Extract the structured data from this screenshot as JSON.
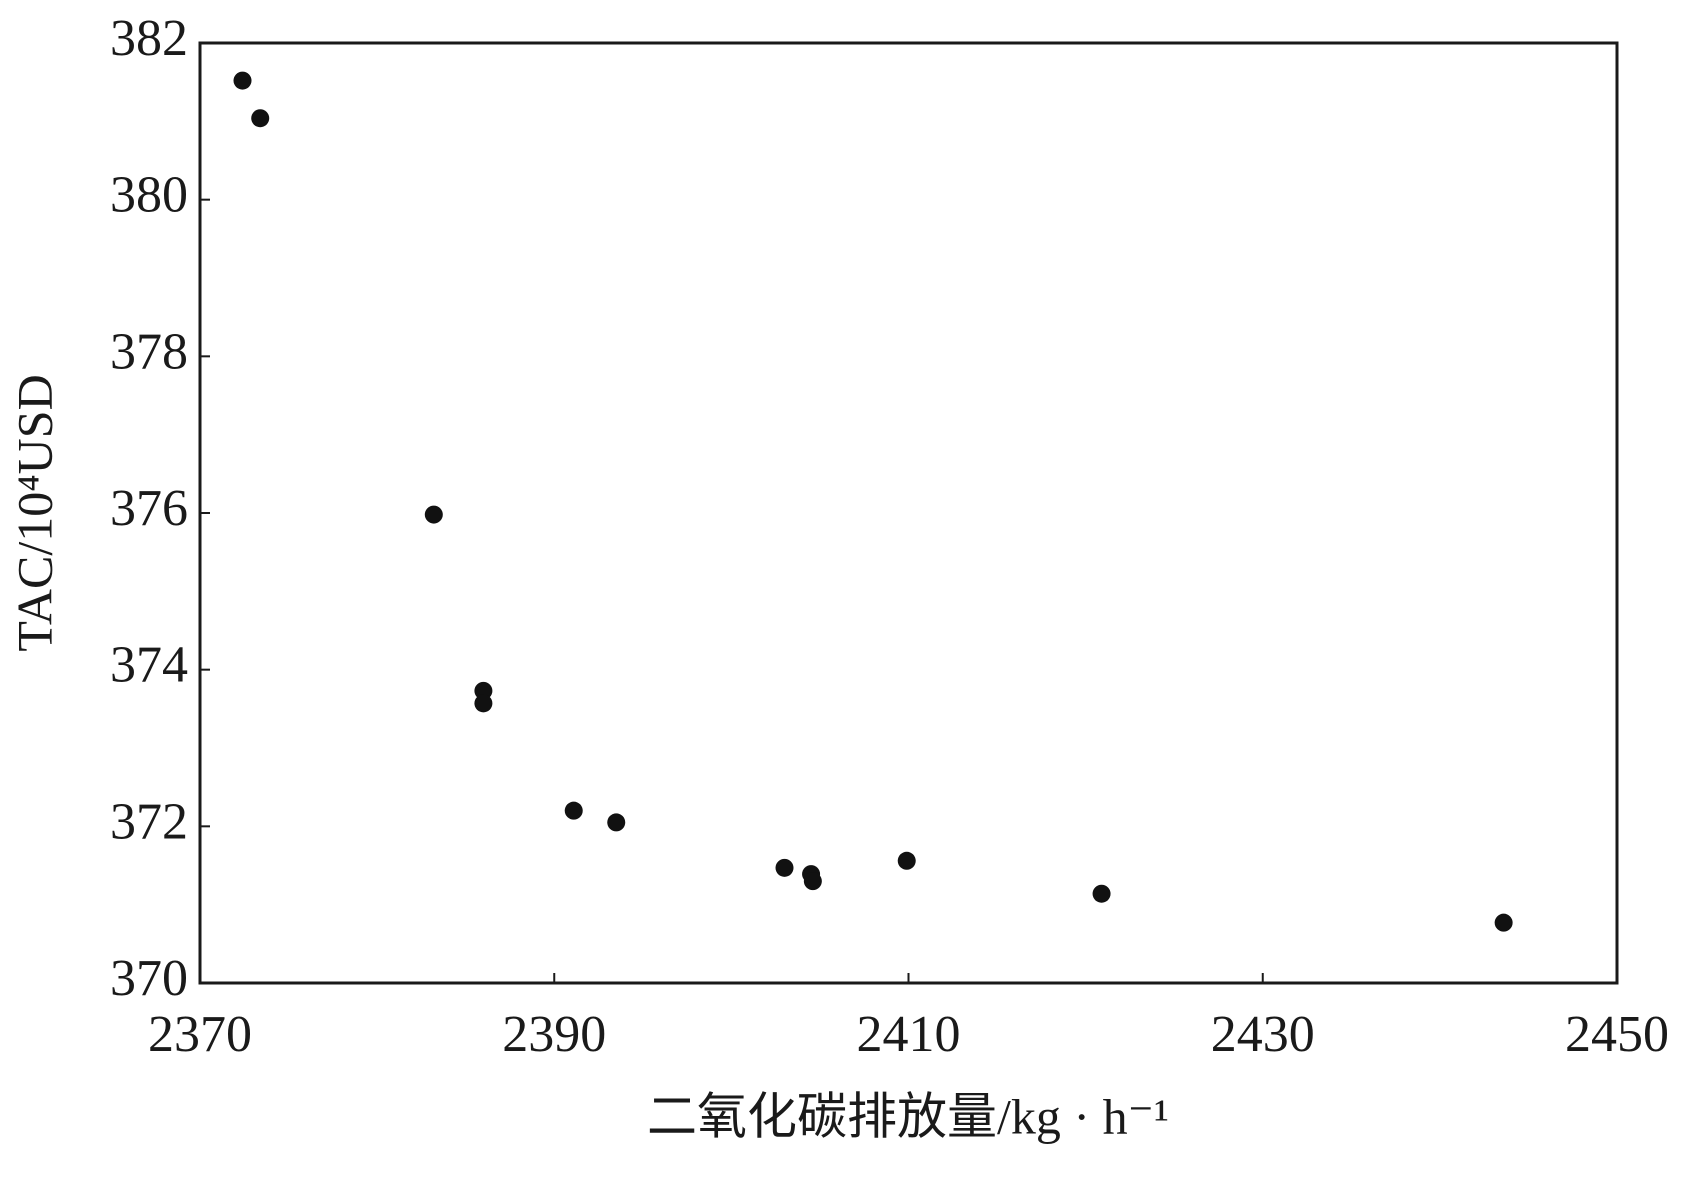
{
  "chart_data": {
    "type": "scatter",
    "x_label": "二氧化碳排放量/kg · h⁻¹",
    "y_label": "TAC/10⁴USD",
    "x": [
      2372.4,
      2373.4,
      2383.2,
      2386.0,
      2386.0,
      2391.1,
      2393.5,
      2403.0,
      2404.5,
      2404.6,
      2409.9,
      2420.9,
      2443.6
    ],
    "values": [
      381.52,
      381.04,
      375.98,
      373.73,
      373.57,
      372.2,
      372.05,
      371.47,
      371.39,
      371.3,
      371.56,
      371.14,
      370.77
    ],
    "color": "#111111",
    "xlim": [
      2370,
      2450
    ],
    "xticks": [
      2370,
      2390,
      2410,
      2430,
      2450
    ],
    "ylim": [
      370,
      382
    ],
    "yticks": [
      370,
      372,
      374,
      376,
      378,
      380,
      382
    ],
    "grid": false
  }
}
